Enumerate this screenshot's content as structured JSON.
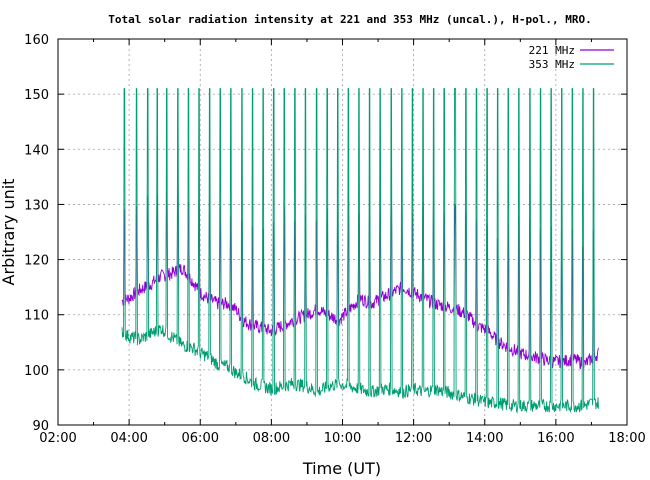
{
  "chart_data": {
    "type": "line",
    "title": "Total solar radiation intensity at 221 and 353 MHz (uncal.), H-pol., MRO.",
    "xlabel": "Time (UT)",
    "ylabel": "Arbitrary unit",
    "xlim": [
      2,
      18
    ],
    "ylim": [
      90,
      160
    ],
    "xticks": [
      "02:00",
      "04:00",
      "06:00",
      "08:00",
      "10:00",
      "12:00",
      "14:00",
      "16:00",
      "18:00"
    ],
    "yticks": [
      "90",
      "100",
      "110",
      "120",
      "130",
      "140",
      "150",
      "160"
    ],
    "grid": true,
    "legend_position": "top-right",
    "calibration_spike_times_hours": [
      3.85,
      4.2,
      4.5,
      4.78,
      5.05,
      5.35,
      5.65,
      5.95,
      6.25,
      6.55,
      6.85,
      7.15,
      7.45,
      7.75,
      8.05,
      8.35,
      8.65,
      8.95,
      9.25,
      9.55,
      9.85,
      10.15,
      10.45,
      10.75,
      11.05,
      11.35,
      11.65,
      11.95,
      12.25,
      12.55,
      12.85,
      13.15,
      13.45,
      13.75,
      14.05,
      14.35,
      14.65,
      14.95,
      15.25,
      15.55,
      15.85,
      16.15,
      16.45,
      16.75,
      17.05
    ],
    "series": [
      {
        "name": "221 MHz",
        "color": "#9400d3",
        "baseline": [
          [
            3.8,
            112.5
          ],
          [
            4.0,
            113
          ],
          [
            4.3,
            114.5
          ],
          [
            4.6,
            115.5
          ],
          [
            4.9,
            117
          ],
          [
            5.2,
            117.5
          ],
          [
            5.5,
            118.5
          ],
          [
            5.8,
            116
          ],
          [
            6.0,
            114
          ],
          [
            6.2,
            113
          ],
          [
            6.5,
            112
          ],
          [
            6.8,
            112
          ],
          [
            7.0,
            111
          ],
          [
            7.2,
            109
          ],
          [
            7.5,
            108
          ],
          [
            7.8,
            107.5
          ],
          [
            8.0,
            107
          ],
          [
            8.3,
            108
          ],
          [
            8.6,
            109
          ],
          [
            9.0,
            110
          ],
          [
            9.3,
            111
          ],
          [
            9.6,
            110
          ],
          [
            9.9,
            109
          ],
          [
            10.2,
            111
          ],
          [
            10.5,
            113
          ],
          [
            10.8,
            112
          ],
          [
            11.1,
            113
          ],
          [
            11.4,
            114
          ],
          [
            11.7,
            115
          ],
          [
            12.0,
            114
          ],
          [
            12.3,
            113
          ],
          [
            12.6,
            112
          ],
          [
            12.9,
            111.5
          ],
          [
            13.2,
            111
          ],
          [
            13.5,
            110
          ],
          [
            13.8,
            108
          ],
          [
            14.1,
            107
          ],
          [
            14.4,
            105
          ],
          [
            14.7,
            104
          ],
          [
            15.0,
            103
          ],
          [
            15.3,
            102.5
          ],
          [
            15.6,
            102
          ],
          [
            15.9,
            101.5
          ],
          [
            16.2,
            101.5
          ],
          [
            16.5,
            102
          ],
          [
            16.8,
            101
          ],
          [
            17.0,
            102
          ],
          [
            17.2,
            103
          ]
        ],
        "step_level": [
          [
            3.85,
            129
          ],
          [
            4.5,
            131
          ],
          [
            5.0,
            133
          ],
          [
            5.5,
            132
          ],
          [
            6.0,
            130
          ],
          [
            6.5,
            128
          ],
          [
            7.0,
            127.5
          ],
          [
            7.5,
            127
          ],
          [
            8.0,
            126.5
          ],
          [
            8.5,
            127
          ],
          [
            9.0,
            127.5
          ],
          [
            9.5,
            128.5
          ],
          [
            10.0,
            129
          ],
          [
            10.5,
            130
          ],
          [
            11.0,
            129.5
          ],
          [
            11.5,
            129
          ],
          [
            12.0,
            128.5
          ],
          [
            12.5,
            128
          ],
          [
            13.0,
            127.5
          ],
          [
            13.5,
            127
          ],
          [
            14.0,
            126.5
          ],
          [
            14.5,
            125.5
          ],
          [
            15.0,
            125
          ],
          [
            15.5,
            124.5
          ],
          [
            16.0,
            124.5
          ],
          [
            16.5,
            124.5
          ],
          [
            17.0,
            125
          ]
        ]
      },
      {
        "name": "353 MHz",
        "color": "#009e73",
        "baseline": [
          [
            3.8,
            107
          ],
          [
            4.0,
            106
          ],
          [
            4.3,
            105.5
          ],
          [
            4.6,
            106.5
          ],
          [
            4.9,
            107.5
          ],
          [
            5.2,
            106
          ],
          [
            5.5,
            104.5
          ],
          [
            5.8,
            104
          ],
          [
            6.0,
            103
          ],
          [
            6.2,
            102.5
          ],
          [
            6.5,
            101
          ],
          [
            6.8,
            100.5
          ],
          [
            7.0,
            99.5
          ],
          [
            7.2,
            99
          ],
          [
            7.5,
            97.5
          ],
          [
            7.8,
            97
          ],
          [
            8.0,
            96.5
          ],
          [
            8.3,
            97
          ],
          [
            8.6,
            97.5
          ],
          [
            9.0,
            97
          ],
          [
            9.3,
            96
          ],
          [
            9.6,
            97
          ],
          [
            9.9,
            97.5
          ],
          [
            10.2,
            97
          ],
          [
            10.5,
            96.5
          ],
          [
            10.8,
            96
          ],
          [
            11.1,
            96.5
          ],
          [
            11.4,
            96.5
          ],
          [
            11.7,
            96
          ],
          [
            12.0,
            96.5
          ],
          [
            12.3,
            96
          ],
          [
            12.6,
            96.5
          ],
          [
            12.9,
            96
          ],
          [
            13.2,
            95.5
          ],
          [
            13.5,
            95
          ],
          [
            13.8,
            94.5
          ],
          [
            14.1,
            94
          ],
          [
            14.4,
            94
          ],
          [
            14.7,
            93.5
          ],
          [
            15.0,
            93.5
          ],
          [
            15.3,
            93.5
          ],
          [
            15.6,
            93.5
          ],
          [
            15.9,
            93.5
          ],
          [
            16.2,
            93.5
          ],
          [
            16.5,
            93.5
          ],
          [
            16.8,
            93.5
          ],
          [
            17.0,
            94
          ],
          [
            17.2,
            94
          ]
        ],
        "spike_peak": 151
      }
    ]
  }
}
